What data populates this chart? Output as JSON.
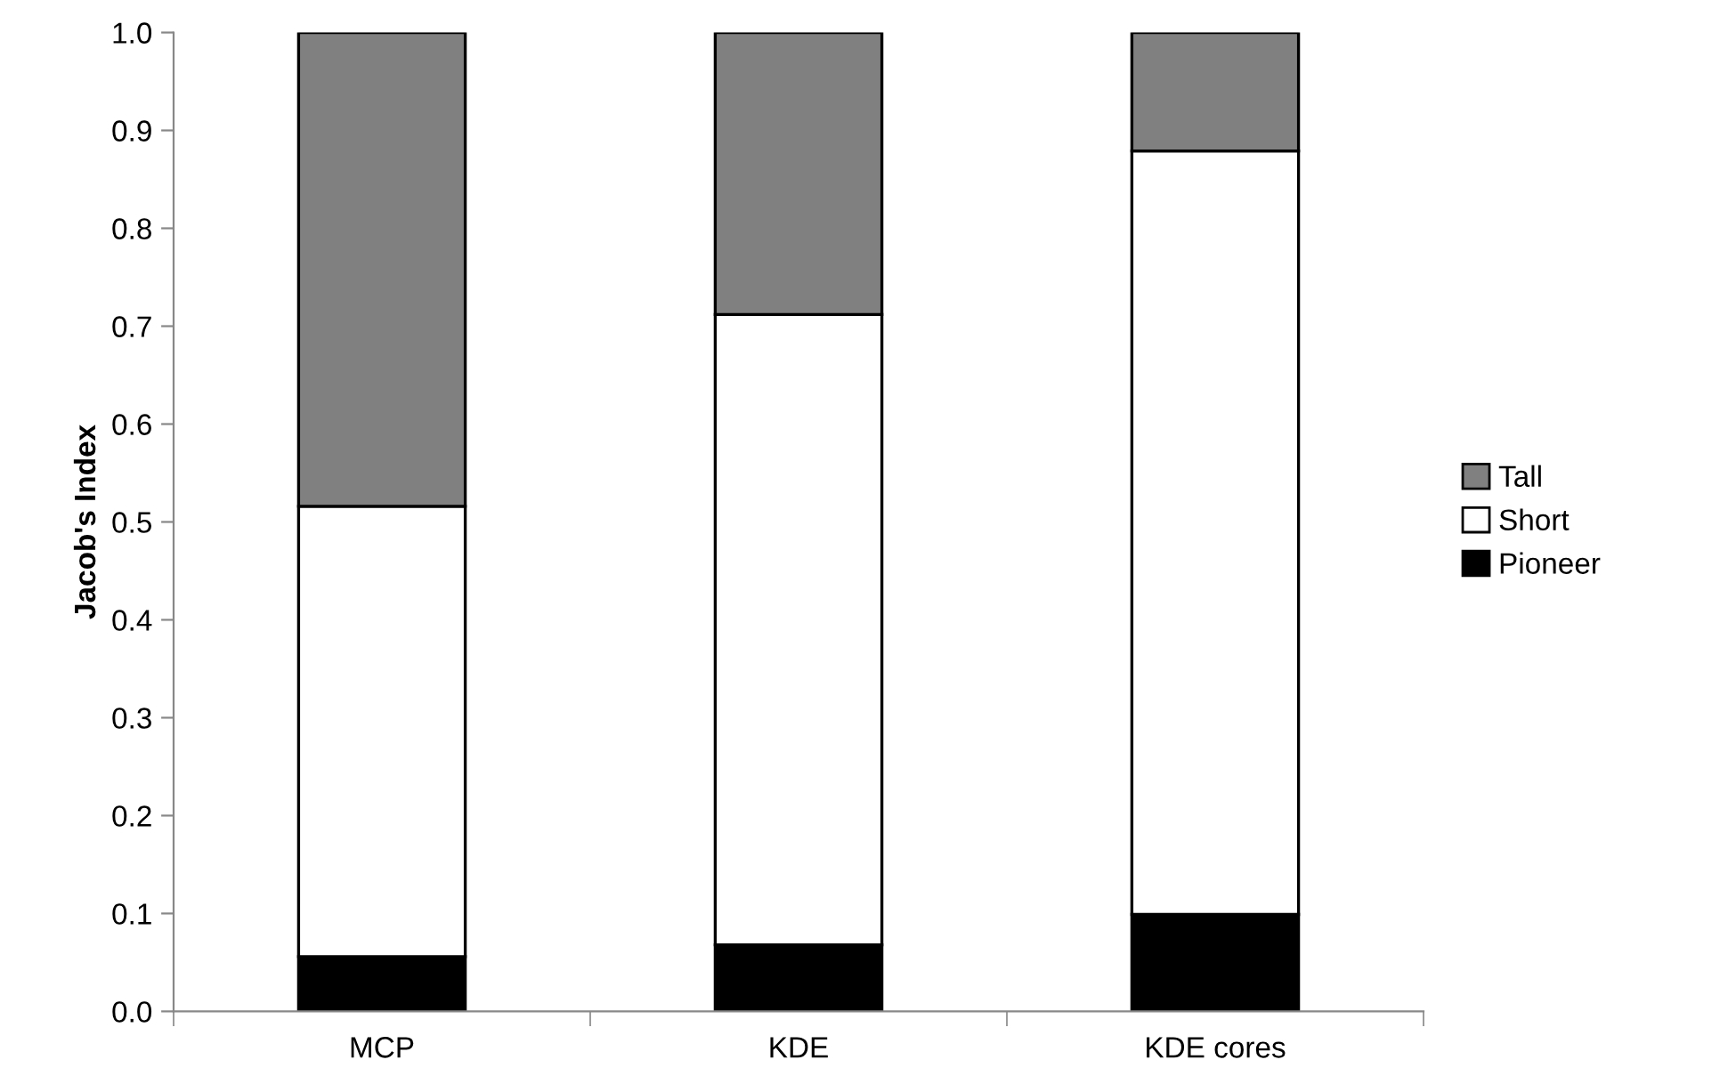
{
  "chart_data": {
    "type": "bar",
    "stacked": true,
    "ylabel": "Jacob's Index",
    "categories": [
      "MCP",
      "KDE",
      "KDE cores"
    ],
    "series": [
      {
        "name": "Pioneer",
        "color": "#000000",
        "values": [
          0.056,
          0.068,
          0.099
        ]
      },
      {
        "name": "Short",
        "color": "#ffffff",
        "values": [
          0.46,
          0.644,
          0.78
        ]
      },
      {
        "name": "Tall",
        "color": "#808080",
        "values": [
          0.484,
          0.288,
          0.121
        ]
      }
    ],
    "ylim": [
      0,
      1
    ],
    "yticks": [
      {
        "value": 0,
        "label": "0.0"
      },
      {
        "value": 0.1,
        "label": "0.1"
      },
      {
        "value": 0.2,
        "label": "0.2"
      },
      {
        "value": 0.3,
        "label": "0.3"
      },
      {
        "value": 0.4,
        "label": "0.4"
      },
      {
        "value": 0.5,
        "label": "0.5"
      },
      {
        "value": 0.6,
        "label": "0.6"
      },
      {
        "value": 0.7,
        "label": "0.7"
      },
      {
        "value": 0.8,
        "label": "0.8"
      },
      {
        "value": 0.9,
        "label": "0.9"
      },
      {
        "value": 1,
        "label": "1.0"
      }
    ],
    "grid": false,
    "legend": "right"
  }
}
